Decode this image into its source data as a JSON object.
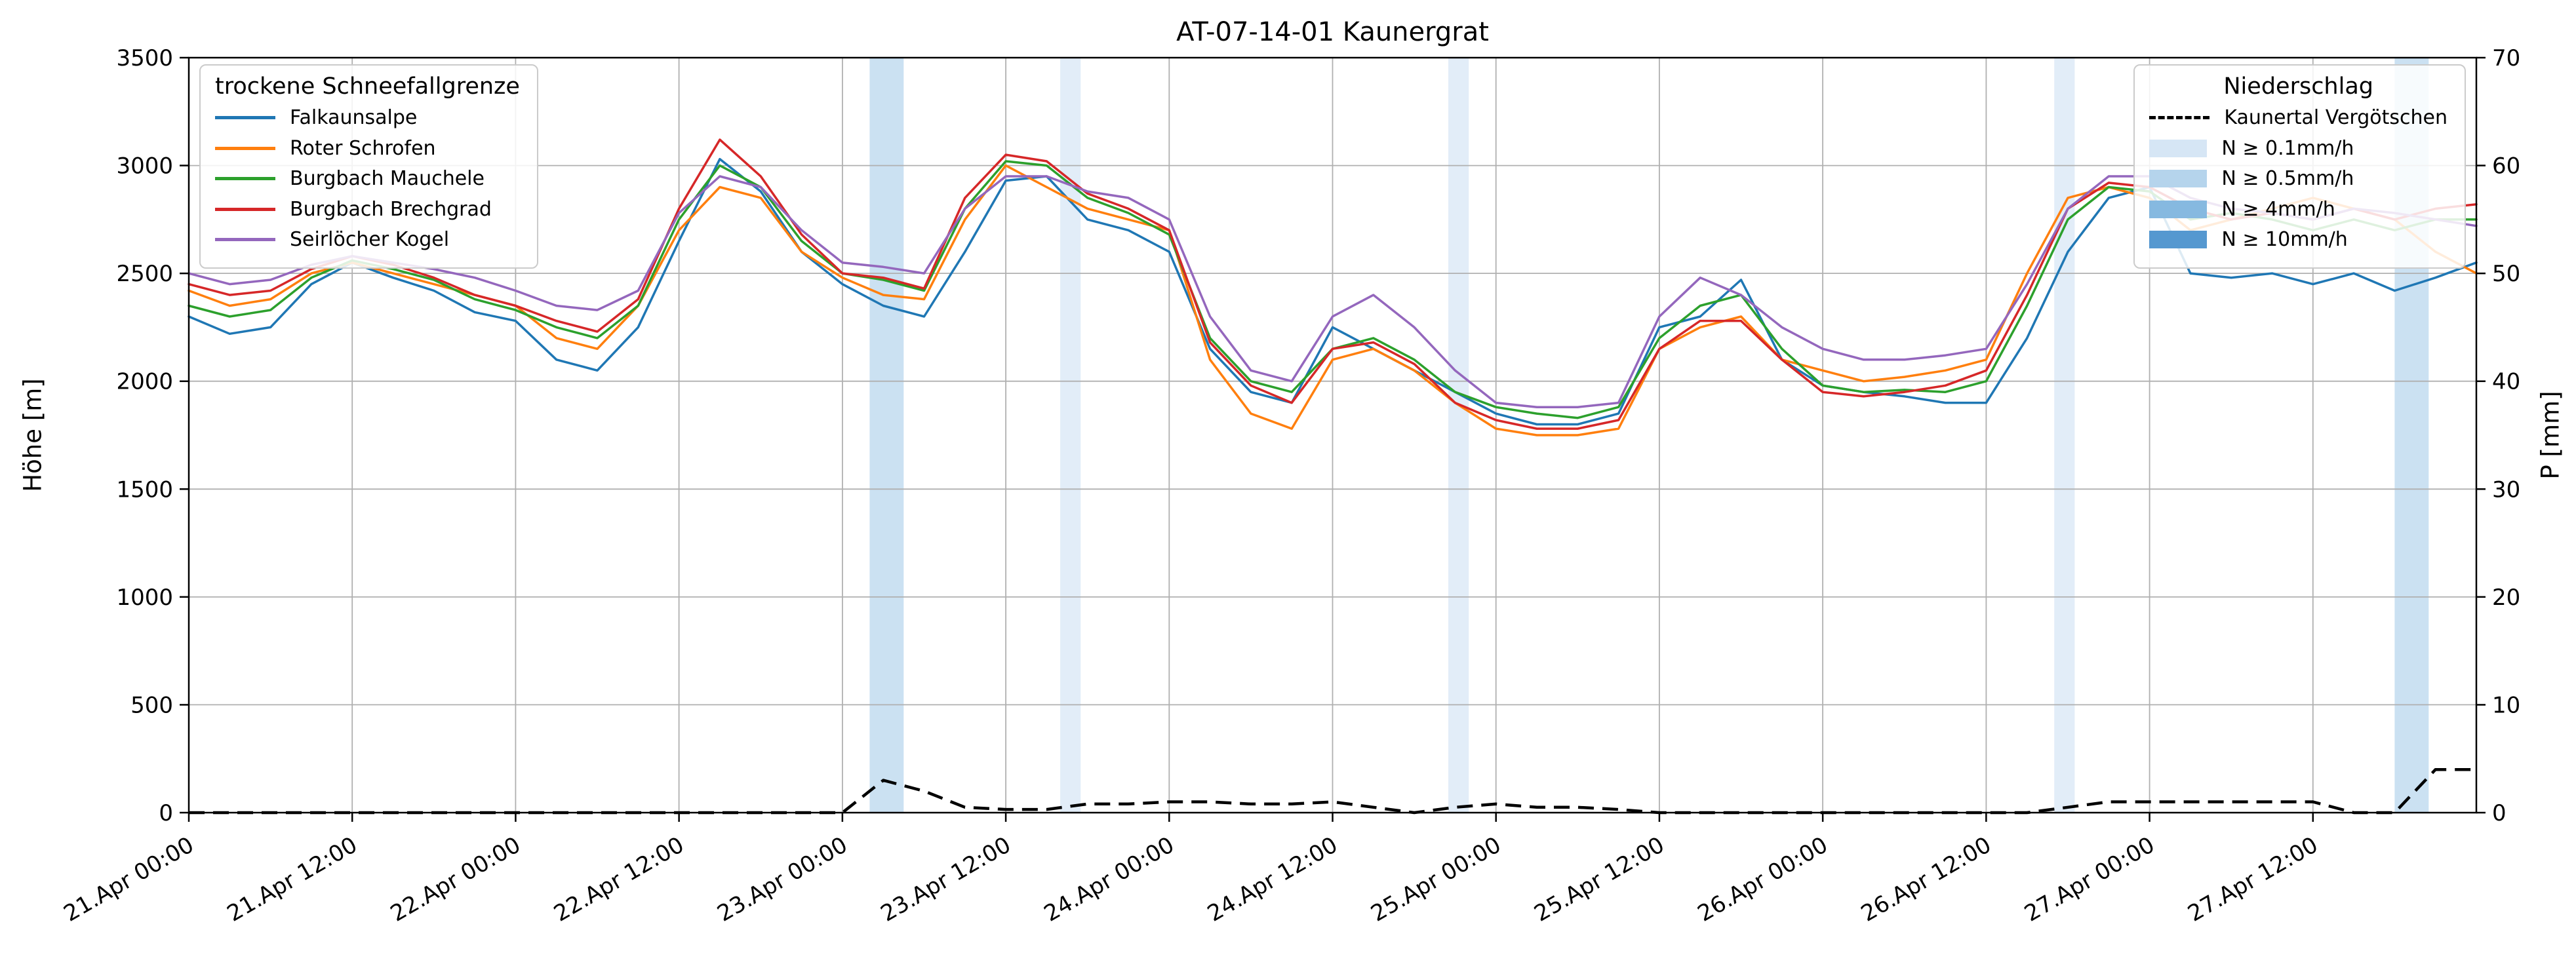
{
  "chart_data": {
    "type": "line",
    "title": "AT-07-14-01 Kaunergrat",
    "xlabel": "",
    "ylabel_left": "Höhe [m]",
    "ylabel_right": "P [mm]",
    "ylim_left": [
      0,
      3500
    ],
    "ylim_right": [
      0,
      70
    ],
    "xlim_hours": [
      0,
      168
    ],
    "grid": true,
    "legend_left_title": "trockene Schneefallgrenze",
    "x_tick_hours": [
      0,
      12,
      24,
      36,
      48,
      60,
      72,
      84,
      96,
      108,
      120,
      132,
      144,
      156
    ],
    "x_tick_labels": [
      "21.Apr 00:00",
      "21.Apr 12:00",
      "22.Apr 00:00",
      "22.Apr 12:00",
      "23.Apr 00:00",
      "23.Apr 12:00",
      "24.Apr 00:00",
      "24.Apr 12:00",
      "25.Apr 00:00",
      "25.Apr 12:00",
      "26.Apr 00:00",
      "26.Apr 12:00",
      "27.Apr 00:00",
      "27.Apr 12:00"
    ],
    "y_ticks_left": [
      0,
      500,
      1000,
      1500,
      2000,
      2500,
      3000,
      3500
    ],
    "y_ticks_right": [
      0,
      10,
      20,
      30,
      40,
      50,
      60,
      70
    ],
    "x_hours": [
      0,
      3,
      6,
      9,
      12,
      15,
      18,
      21,
      24,
      27,
      30,
      33,
      36,
      39,
      42,
      45,
      48,
      51,
      54,
      57,
      60,
      63,
      66,
      69,
      72,
      75,
      78,
      81,
      84,
      87,
      90,
      93,
      96,
      99,
      102,
      105,
      108,
      111,
      114,
      117,
      120,
      123,
      126,
      129,
      132,
      135,
      138,
      141,
      144,
      147,
      150,
      153,
      156,
      159,
      162,
      165,
      168
    ],
    "series": [
      {
        "name": "Falkaunsalpe",
        "color": "#1f77b4",
        "values": [
          2300,
          2220,
          2250,
          2450,
          2550,
          2480,
          2420,
          2320,
          2280,
          2100,
          2050,
          2250,
          2650,
          3030,
          2880,
          2600,
          2450,
          2350,
          2300,
          2600,
          2930,
          2950,
          2750,
          2700,
          2600,
          2150,
          1950,
          1900,
          2250,
          2150,
          2050,
          1950,
          1850,
          1800,
          1800,
          1850,
          2250,
          2300,
          2470,
          2100,
          1980,
          1950,
          1930,
          1900,
          1900,
          2200,
          2600,
          2850,
          2900,
          2500,
          2480,
          2500,
          2450,
          2500,
          2420,
          2480,
          2550
        ]
      },
      {
        "name": "Roter Schrofen",
        "color": "#ff7f0e",
        "values": [
          2420,
          2350,
          2380,
          2500,
          2550,
          2500,
          2450,
          2400,
          2350,
          2200,
          2150,
          2350,
          2700,
          2900,
          2850,
          2600,
          2480,
          2400,
          2380,
          2750,
          3000,
          2900,
          2800,
          2750,
          2700,
          2100,
          1850,
          1780,
          2100,
          2150,
          2050,
          1900,
          1780,
          1750,
          1750,
          1780,
          2150,
          2250,
          2300,
          2100,
          2050,
          2000,
          2020,
          2050,
          2100,
          2500,
          2850,
          2900,
          2850,
          2700,
          2750,
          2800,
          2850,
          2800,
          2750,
          2600,
          2500
        ]
      },
      {
        "name": "Burgbach Mauchele",
        "color": "#2ca02c",
        "values": [
          2350,
          2300,
          2330,
          2480,
          2560,
          2520,
          2470,
          2380,
          2330,
          2250,
          2200,
          2350,
          2750,
          3000,
          2900,
          2650,
          2500,
          2470,
          2420,
          2800,
          3020,
          3000,
          2850,
          2780,
          2680,
          2200,
          2000,
          1950,
          2150,
          2200,
          2100,
          1950,
          1880,
          1850,
          1830,
          1880,
          2200,
          2350,
          2400,
          2150,
          1980,
          1950,
          1960,
          1950,
          2000,
          2350,
          2750,
          2900,
          2880,
          2750,
          2780,
          2750,
          2700,
          2750,
          2700,
          2750,
          2750
        ]
      },
      {
        "name": "Burgbach Brechgrad",
        "color": "#d62728",
        "values": [
          2450,
          2400,
          2420,
          2520,
          2580,
          2540,
          2480,
          2400,
          2350,
          2280,
          2230,
          2380,
          2800,
          3120,
          2950,
          2680,
          2500,
          2480,
          2430,
          2850,
          3050,
          3020,
          2870,
          2800,
          2700,
          2180,
          1980,
          1900,
          2150,
          2180,
          2080,
          1900,
          1820,
          1780,
          1780,
          1820,
          2150,
          2280,
          2280,
          2100,
          1950,
          1930,
          1950,
          1980,
          2050,
          2400,
          2800,
          2920,
          2900,
          2800,
          2750,
          2780,
          2750,
          2800,
          2750,
          2800,
          2820
        ]
      },
      {
        "name": "Seirlöcher Kogel",
        "color": "#9467bd",
        "values": [
          2500,
          2450,
          2470,
          2540,
          2580,
          2550,
          2520,
          2480,
          2420,
          2350,
          2330,
          2420,
          2780,
          2950,
          2900,
          2700,
          2550,
          2530,
          2500,
          2800,
          2950,
          2950,
          2880,
          2850,
          2750,
          2300,
          2050,
          2000,
          2300,
          2400,
          2250,
          2050,
          1900,
          1880,
          1880,
          1900,
          2300,
          2480,
          2400,
          2250,
          2150,
          2100,
          2100,
          2120,
          2150,
          2450,
          2800,
          2950,
          2950,
          2850,
          2800,
          2780,
          2750,
          2800,
          2780,
          2750,
          2720
        ]
      }
    ],
    "precipitation": {
      "legend_title": "Niederschlag",
      "station": "Kaunertal Vergötschen",
      "color": "#000000",
      "dash": true,
      "values": [
        0,
        0,
        0,
        0,
        0,
        0,
        0,
        0,
        0,
        0,
        0,
        0,
        0,
        0,
        0,
        0,
        0,
        3,
        2,
        0.5,
        0.3,
        0.3,
        0.8,
        0.8,
        1,
        1,
        0.8,
        0.8,
        1,
        0.5,
        0,
        0.5,
        0.8,
        0.5,
        0.5,
        0.3,
        0,
        0,
        0,
        0,
        0,
        0,
        0,
        0,
        0,
        0,
        0.5,
        1,
        1,
        1,
        1,
        1,
        1,
        0,
        0,
        4,
        4
      ],
      "levels": [
        {
          "label": "N ≥ 0.1mm/h",
          "color": "#d6e6f5"
        },
        {
          "label": "N ≥ 0.5mm/h",
          "color": "#b5d4ec"
        },
        {
          "label": "N ≥ 4mm/h",
          "color": "#86b9e0"
        },
        {
          "label": "N ≥ 10mm/h",
          "color": "#5598d0"
        }
      ],
      "bands": [
        {
          "start_hour": 50,
          "end_hour": 52.5,
          "level": "N ≥ 0.5mm/h"
        },
        {
          "start_hour": 64,
          "end_hour": 65.5,
          "level": "N ≥ 0.1mm/h"
        },
        {
          "start_hour": 92.5,
          "end_hour": 94,
          "level": "N ≥ 0.1mm/h"
        },
        {
          "start_hour": 137,
          "end_hour": 138.5,
          "level": "N ≥ 0.1mm/h"
        },
        {
          "start_hour": 162,
          "end_hour": 164.5,
          "level": "N ≥ 0.5mm/h"
        }
      ]
    }
  }
}
